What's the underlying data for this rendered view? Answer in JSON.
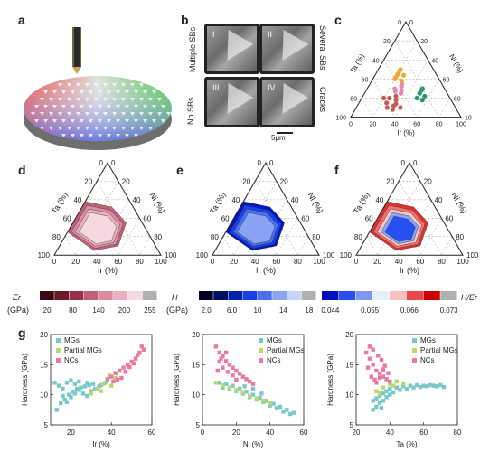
{
  "panels": {
    "a": "a",
    "b": "b",
    "c": "c",
    "d": "d",
    "e": "e",
    "f": "f",
    "g": "g"
  },
  "sem": {
    "tiles": [
      {
        "num": "I",
        "color": "#c45a5a"
      },
      {
        "num": "II",
        "color": "#e48ab8"
      },
      {
        "num": "III",
        "color": "#2a9a6a"
      },
      {
        "num": "IV",
        "color": "#f0a830"
      }
    ],
    "side_labels": {
      "multiple": "Multiple SBs",
      "several": "Several SBs",
      "none": "No SBs",
      "cracks": "Cracks"
    },
    "scale_bar": "5μm"
  },
  "ternary": {
    "ta_label": "Ta (%)",
    "ni_label": "Ni (%)",
    "ir_label": "Ir (%)",
    "ticks_top": [
      "0",
      "20",
      "40",
      "60",
      "80",
      "100"
    ],
    "ticks_ir": [
      "0",
      "20",
      "40",
      "60",
      "80",
      "100"
    ],
    "ticks_ta": [
      "100",
      "80",
      "60",
      "40",
      "20",
      "0"
    ],
    "ticks_ni": [
      "0",
      "20",
      "40",
      "60",
      "80",
      "100"
    ]
  },
  "colorbars": [
    {
      "label": "Er",
      "unit": "(GPa)",
      "ticks": [
        "20",
        "80",
        "140",
        "200",
        "255"
      ],
      "colors": [
        "#3a0a12",
        "#6e1a28",
        "#9a3048",
        "#c2607a",
        "#dc8aa0",
        "#ecb0c0",
        "#f6d8e0",
        "#b0b0b0"
      ]
    },
    {
      "label": "H",
      "unit": "(GPa)",
      "ticks": [
        "2.0",
        "6.0",
        "10",
        "14",
        "18"
      ],
      "colors": [
        "#000022",
        "#001060",
        "#0020b0",
        "#1840e8",
        "#4a70f0",
        "#8aa4f4",
        "#c6d2fa",
        "#b0b0b0"
      ]
    },
    {
      "label": "H/Er",
      "unit": "",
      "ticks": [
        "0.044",
        "0.055",
        "0.066",
        "0.073"
      ],
      "colors": [
        "#0010c0",
        "#2850f0",
        "#7c98f2",
        "#e8eef8",
        "#f5c2c2",
        "#e84848",
        "#cc0000",
        "#b0b0b0"
      ]
    }
  ],
  "chart_data": [
    {
      "type": "scatter",
      "ylabel": "Hardness (GPa)",
      "xlabel": "Ir (%)",
      "xlim": [
        10,
        60
      ],
      "ylim": [
        5,
        20
      ],
      "xticks": [
        "20",
        "40",
        "60"
      ],
      "yticks": [
        "5",
        "10",
        "15",
        "20"
      ],
      "legend": [
        "MGs",
        "Partial MGs",
        "NCs"
      ],
      "series": [
        {
          "name": "MGs",
          "color": "#7cc8c8",
          "points": [
            [
              13,
              7.5
            ],
            [
              15,
              8.6
            ],
            [
              17,
              9.2
            ],
            [
              19,
              10
            ],
            [
              21,
              10.5
            ],
            [
              23,
              11
            ],
            [
              25,
              11.2
            ],
            [
              27,
              11.4
            ],
            [
              29,
              11.6
            ],
            [
              31,
              11.8
            ],
            [
              14,
              11.5
            ],
            [
              16,
              11
            ],
            [
              18,
              12
            ],
            [
              20,
              12.4
            ],
            [
              22,
              11.8
            ],
            [
              24,
              10.8
            ],
            [
              26,
              10.2
            ],
            [
              28,
              9.8
            ],
            [
              30,
              10.6
            ],
            [
              32,
              11
            ],
            [
              34,
              11.4
            ],
            [
              16,
              9.8
            ],
            [
              18,
              8.8
            ],
            [
              20,
              9.6
            ],
            [
              22,
              10.2
            ],
            [
              12,
              12
            ],
            [
              35,
              11.6
            ],
            [
              37,
              12
            ],
            [
              24,
              12.2
            ],
            [
              28,
              12
            ]
          ]
        },
        {
          "name": "Partial MGs",
          "color": "#b8d870",
          "points": [
            [
              30,
              10.2
            ],
            [
              33,
              11
            ],
            [
              36,
              11.8
            ],
            [
              38,
              12.4
            ],
            [
              40,
              11.5
            ],
            [
              42,
              12.8
            ],
            [
              35,
              10.6
            ],
            [
              39,
              13.2
            ]
          ]
        },
        {
          "name": "NCs",
          "color": "#e87ba0",
          "points": [
            [
              40,
              13
            ],
            [
              42,
              13.6
            ],
            [
              44,
              14
            ],
            [
              46,
              14.5
            ],
            [
              48,
              15
            ],
            [
              50,
              15.5
            ],
            [
              52,
              16
            ],
            [
              54,
              17
            ],
            [
              55,
              18
            ],
            [
              45,
              12.8
            ],
            [
              47,
              13.8
            ],
            [
              49,
              14.6
            ],
            [
              51,
              15.2
            ],
            [
              53,
              16.6
            ],
            [
              43,
              12.5
            ],
            [
              56,
              17.5
            ],
            [
              41,
              12.2
            ],
            [
              38,
              12.6
            ]
          ]
        }
      ]
    },
    {
      "type": "scatter",
      "ylabel": "Hardness (GPa)",
      "xlabel": "Ni (%)",
      "xlim": [
        0,
        60
      ],
      "ylim": [
        5,
        20
      ],
      "xticks": [
        "0",
        "20",
        "40",
        "60"
      ],
      "yticks": [
        "5",
        "10",
        "15",
        "20"
      ],
      "legend": [
        "MGs",
        "Partial MGs",
        "NCs"
      ],
      "series": [
        {
          "name": "MGs",
          "color": "#7cc8c8",
          "points": [
            [
              10,
              12
            ],
            [
              14,
              11.8
            ],
            [
              18,
              11.5
            ],
            [
              22,
              11
            ],
            [
              26,
              10.5
            ],
            [
              30,
              10
            ],
            [
              34,
              9.5
            ],
            [
              38,
              9
            ],
            [
              42,
              8.5
            ],
            [
              46,
              8
            ],
            [
              50,
              7.5
            ],
            [
              54,
              7
            ],
            [
              12,
              11.2
            ],
            [
              16,
              11
            ],
            [
              20,
              10.6
            ],
            [
              24,
              10.2
            ],
            [
              28,
              9.6
            ],
            [
              32,
              9.2
            ],
            [
              36,
              8.8
            ],
            [
              40,
              8.2
            ],
            [
              44,
              7.8
            ],
            [
              48,
              7.2
            ],
            [
              52,
              6.8
            ],
            [
              35,
              10.2
            ],
            [
              30,
              11
            ],
            [
              25,
              11.4
            ]
          ]
        },
        {
          "name": "Partial MGs",
          "color": "#b8d870",
          "points": [
            [
              8,
              12
            ],
            [
              12,
              11.6
            ],
            [
              16,
              11.2
            ],
            [
              20,
              10.8
            ],
            [
              24,
              10.4
            ],
            [
              28,
              9.8
            ],
            [
              32,
              9.4
            ],
            [
              36,
              9
            ],
            [
              40,
              8.6
            ]
          ]
        },
        {
          "name": "NCs",
          "color": "#e87ba0",
          "points": [
            [
              8,
              18
            ],
            [
              10,
              17
            ],
            [
              12,
              16.4
            ],
            [
              14,
              15.6
            ],
            [
              16,
              15
            ],
            [
              18,
              14.5
            ],
            [
              20,
              14
            ],
            [
              22,
              13.5
            ],
            [
              24,
              13
            ],
            [
              26,
              12.6
            ],
            [
              28,
              12.2
            ],
            [
              30,
              11.8
            ],
            [
              10,
              15.5
            ],
            [
              12,
              14.5
            ],
            [
              15,
              13.8
            ],
            [
              18,
              13.2
            ],
            [
              11,
              16
            ],
            [
              14,
              17
            ],
            [
              20,
              12.5
            ],
            [
              9,
              14
            ]
          ]
        }
      ]
    },
    {
      "type": "scatter",
      "ylabel": "Hardness (GPa)",
      "xlabel": "Ta (%)",
      "xlim": [
        20,
        80
      ],
      "ylim": [
        5,
        20
      ],
      "xticks": [
        "20",
        "40",
        "60",
        "80"
      ],
      "yticks": [
        "5",
        "10",
        "15",
        "20"
      ],
      "legend": [
        "MGs",
        "Partial MGs",
        "NCs"
      ],
      "series": [
        {
          "name": "MGs",
          "color": "#7cc8c8",
          "points": [
            [
              30,
              9
            ],
            [
              32,
              9.4
            ],
            [
              34,
              9.8
            ],
            [
              36,
              10.2
            ],
            [
              38,
              10.6
            ],
            [
              40,
              11
            ],
            [
              44,
              11.2
            ],
            [
              48,
              11.4
            ],
            [
              52,
              11.5
            ],
            [
              56,
              11.6
            ],
            [
              60,
              11.5
            ],
            [
              64,
              11.6
            ],
            [
              68,
              11.4
            ],
            [
              72,
              11.3
            ],
            [
              32,
              8
            ],
            [
              34,
              8.6
            ],
            [
              36,
              9
            ],
            [
              38,
              9.6
            ],
            [
              40,
              10
            ],
            [
              42,
              10.4
            ],
            [
              46,
              10.8
            ],
            [
              50,
              11
            ],
            [
              54,
              11.2
            ],
            [
              58,
              11.3
            ],
            [
              62,
              11.4
            ],
            [
              66,
              11.5
            ],
            [
              70,
              11.6
            ],
            [
              30,
              7.5
            ],
            [
              35,
              7.8
            ]
          ]
        },
        {
          "name": "Partial MGs",
          "color": "#b8d870",
          "points": [
            [
              32,
              10.6
            ],
            [
              36,
              11.2
            ],
            [
              40,
              11.8
            ],
            [
              44,
              12.2
            ],
            [
              48,
              11.9
            ],
            [
              38,
              12.4
            ],
            [
              42,
              11.5
            ],
            [
              34,
              10.2
            ]
          ]
        },
        {
          "name": "NCs",
          "color": "#e87ba0",
          "points": [
            [
              26,
              17
            ],
            [
              28,
              16
            ],
            [
              30,
              15
            ],
            [
              32,
              14
            ],
            [
              34,
              13.5
            ],
            [
              36,
              13
            ],
            [
              27,
              14.5
            ],
            [
              29,
              13
            ],
            [
              31,
              12.5
            ],
            [
              33,
              16.5
            ],
            [
              35,
              15.8
            ],
            [
              37,
              14.8
            ],
            [
              39,
              13.6
            ],
            [
              28,
              18
            ],
            [
              30,
              17.5
            ],
            [
              32,
              12
            ],
            [
              34,
              12.8
            ],
            [
              36,
              14.2
            ],
            [
              38,
              12.6
            ],
            [
              40,
              12.2
            ]
          ]
        }
      ]
    }
  ]
}
